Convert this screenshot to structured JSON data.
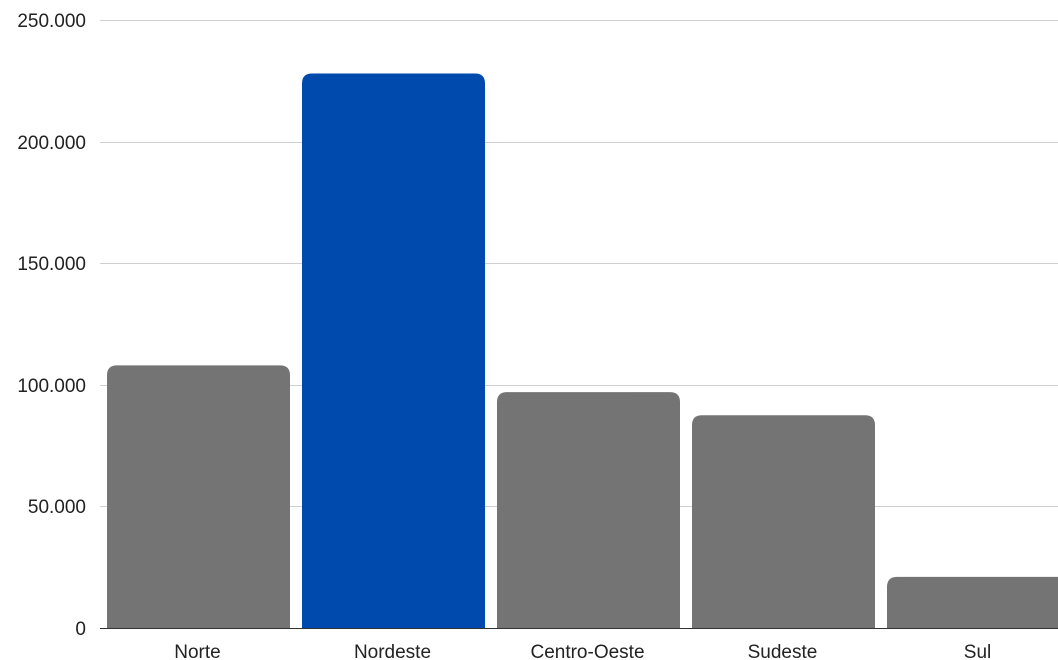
{
  "chart_data": {
    "type": "bar",
    "categories": [
      "Norte",
      "Nordeste",
      "Centro-Oeste",
      "Sudeste",
      "Sul"
    ],
    "values": [
      108000,
      228000,
      97000,
      87500,
      21000
    ],
    "ylim": [
      0,
      250000
    ],
    "yticks": [
      0,
      50000,
      100000,
      150000,
      200000,
      250000
    ],
    "ytick_labels": [
      "0",
      "50.000",
      "100.000",
      "150.000",
      "200.000",
      "250.000"
    ],
    "grid": true,
    "highlight_index": 1,
    "colors": {
      "default_bar": "#747474",
      "highlight_bar": "#004aad",
      "grid": "#d0d0d0"
    }
  }
}
